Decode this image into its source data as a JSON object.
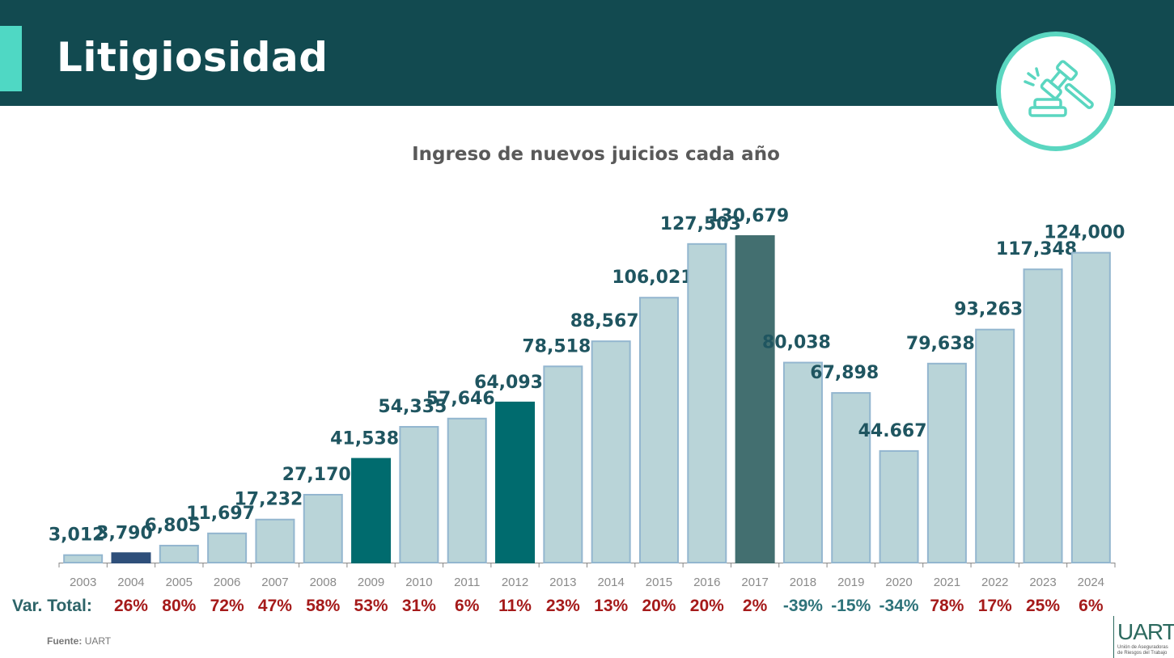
{
  "header": {
    "title": "Litigiosidad",
    "icon": "gavel-icon"
  },
  "footer": {
    "source_label": "Fuente:",
    "source_value": "UART",
    "logo_text": "UART",
    "logo_subtitle": "Unión de Aseguradoras de Riesgos del Trabajo"
  },
  "var_row": {
    "label": "Var. Total:",
    "values": [
      "26%",
      "80%",
      "72%",
      "47%",
      "58%",
      "53%",
      "31%",
      "6%",
      "11%",
      "23%",
      "13%",
      "20%",
      "20%",
      "2%",
      "-39%",
      "-15%",
      "-34%",
      "78%",
      "17%",
      "25%",
      "6%"
    ]
  },
  "colors": {
    "default_bar": "#b9d4d8",
    "bar_2004": "#2e4f7a",
    "highlight": "#006b6e",
    "bar_2017": "#436f70",
    "label": "#1f5560",
    "positive": "#a51a1a",
    "negative": "#2d7279"
  },
  "chart_data": {
    "type": "bar",
    "title": "Ingreso de nuevos juicios cada año",
    "xlabel": "",
    "ylabel": "",
    "ylim": [
      0,
      130679
    ],
    "categories": [
      "2003",
      "2004",
      "2005",
      "2006",
      "2007",
      "2008",
      "2009",
      "2010",
      "2011",
      "2012",
      "2013",
      "2014",
      "2015",
      "2016",
      "2017",
      "2018",
      "2019",
      "2020",
      "2021",
      "2022",
      "2023",
      "2024"
    ],
    "values": [
      3012,
      3790,
      6805,
      11697,
      17232,
      27170,
      41538,
      54335,
      57646,
      64093,
      78518,
      88567,
      106021,
      127503,
      130679,
      80038,
      67898,
      44667,
      79638,
      93263,
      117348,
      124000
    ],
    "data_labels": [
      "3,012",
      "3,790",
      "6,805",
      "11,697",
      "17,232",
      "27,170",
      "41,538",
      "54,335",
      "57,646",
      "64,093",
      "78,518",
      "88,567",
      "106,021",
      "127,503",
      "130,679",
      "80,038",
      "67,898",
      "44.667",
      "79,638",
      "93,263",
      "117,348",
      "124,000"
    ],
    "bar_colors": [
      "default",
      "bar_2004",
      "default",
      "default",
      "default",
      "default",
      "highlight",
      "default",
      "default",
      "highlight",
      "default",
      "default",
      "default",
      "default",
      "bar_2017",
      "default",
      "default",
      "default",
      "default",
      "default",
      "default",
      "default"
    ]
  }
}
